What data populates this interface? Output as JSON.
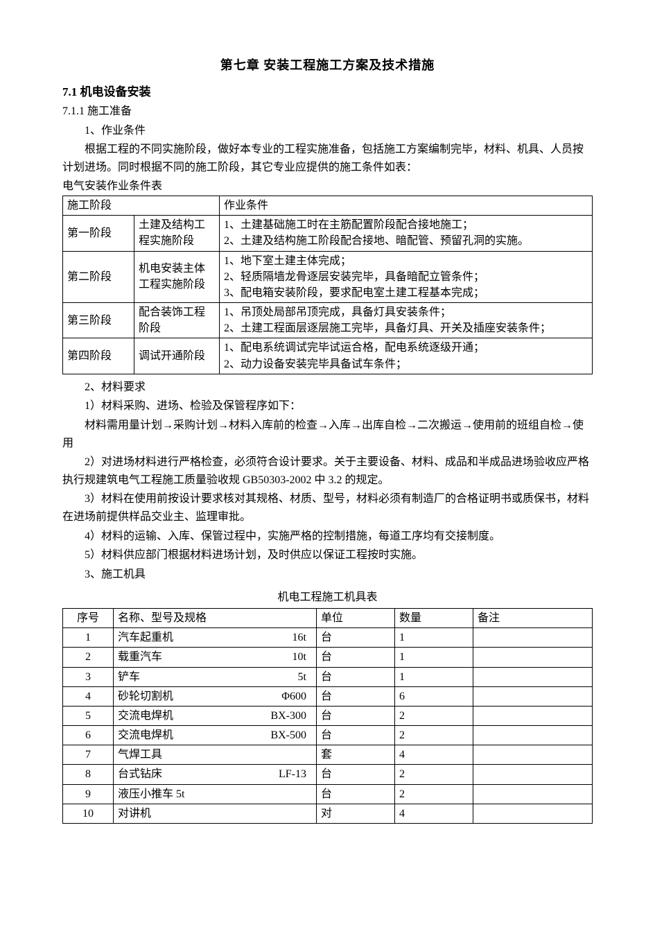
{
  "chapter_title": "第七章 安装工程施工方案及技术措施",
  "section_7_1": "7.1 机电设备安装",
  "section_7_1_1": "7.1.1 施工准备",
  "item_1": "1、作业条件",
  "para_intro": "根据工程的不同实施阶段，做好本专业的工程实施准备，包括施工方案编制完毕，材料、机具、人员按计划进场。同时根据不同的施工阶段，其它专业应提供的施工条件如表：",
  "table1_caption": "电气安装作业条件表",
  "table1": {
    "head": [
      "施工阶段",
      "",
      "作业条件"
    ],
    "rows": [
      {
        "phase": "第一阶段",
        "subphase": "土建及结构工程实施阶段",
        "cond": "1、土建基础施工时在主筋配置阶段配合接地施工；\n2、土建及结构施工阶段配合接地、暗配管、预留孔洞的实施。"
      },
      {
        "phase": "第二阶段",
        "subphase": "机电安装主体工程实施阶段",
        "cond": "1、地下室土建主体完成；\n2、轻质隔墙龙骨逐层安装完毕，具备暗配立管条件；\n3、配电箱安装阶段，要求配电室土建工程基本完成；"
      },
      {
        "phase": "第三阶段",
        "subphase": "配合装饰工程阶段",
        "cond": "1、吊顶处局部吊顶完成，具备灯具安装条件；\n2、土建工程面层逐层施工完毕，具备灯具、开关及插座安装条件；"
      },
      {
        "phase": "第四阶段",
        "subphase": "调试开通阶段",
        "cond": "1、配电系统调试完毕试运合格，配电系统逐级开通；\n2、动力设备安装完毕具备试车条件；"
      }
    ]
  },
  "item_2": "2、材料要求",
  "para_2_1": "1）材料采购、进场、检验及保管程序如下：",
  "para_2_flow": "材料需用量计划→采购计划→材料入库前的检查→入库→出库自检→二次搬运→使用前的班组自检→使用",
  "para_2_2": "2）对进场材料进行严格检查，必须符合设计要求。关于主要设备、材料、成品和半成品进场验收应严格执行规建筑电气工程施工质量验收规 GB50303-2002 中 3.2 的规定。",
  "para_2_3": "3）材料在使用前按设计要求核对其规格、材质、型号，材料必须有制造厂的合格证明书或质保书，材料在进场前提供样品交业主、监理审批。",
  "para_2_4": "4）材料的运输、入库、保管过程中，实施严格的控制措施，每道工序均有交接制度。",
  "para_2_5": "5）材料供应部门根据材料进场计划，及时供应以保证工程按时实施。",
  "item_3": "3、施工机具",
  "table2_caption": "机电工程施工机具表",
  "table2": {
    "head": [
      "序号",
      "名称、型号及规格",
      "单位",
      "数量",
      "备注"
    ],
    "rows": [
      {
        "no": "1",
        "name": "汽车起重机",
        "spec": "16t",
        "unit": "台",
        "qty": "1",
        "note": ""
      },
      {
        "no": "2",
        "name": "载重汽车",
        "spec": "10t",
        "unit": "台",
        "qty": "1",
        "note": ""
      },
      {
        "no": "3",
        "name": "铲车",
        "spec": "5t",
        "unit": "台",
        "qty": "1",
        "note": ""
      },
      {
        "no": "4",
        "name": "砂轮切割机",
        "spec": "Φ600",
        "unit": "台",
        "qty": "6",
        "note": ""
      },
      {
        "no": "5",
        "name": "交流电焊机",
        "spec": "BX-300",
        "unit": "台",
        "qty": "2",
        "note": ""
      },
      {
        "no": "6",
        "name": "交流电焊机",
        "spec": "BX-500",
        "unit": "台",
        "qty": "2",
        "note": ""
      },
      {
        "no": "7",
        "name": "气焊工具",
        "spec": "",
        "unit": "套",
        "qty": "4",
        "note": ""
      },
      {
        "no": "8",
        "name": "台式钻床",
        "spec": "LF-13",
        "unit": "台",
        "qty": "2",
        "note": ""
      },
      {
        "no": "9",
        "name": "液压小推车 5t",
        "spec": "",
        "unit": "台",
        "qty": "2",
        "note": ""
      },
      {
        "no": "10",
        "name": "对讲机",
        "spec": "",
        "unit": "对",
        "qty": "4",
        "note": ""
      }
    ]
  }
}
